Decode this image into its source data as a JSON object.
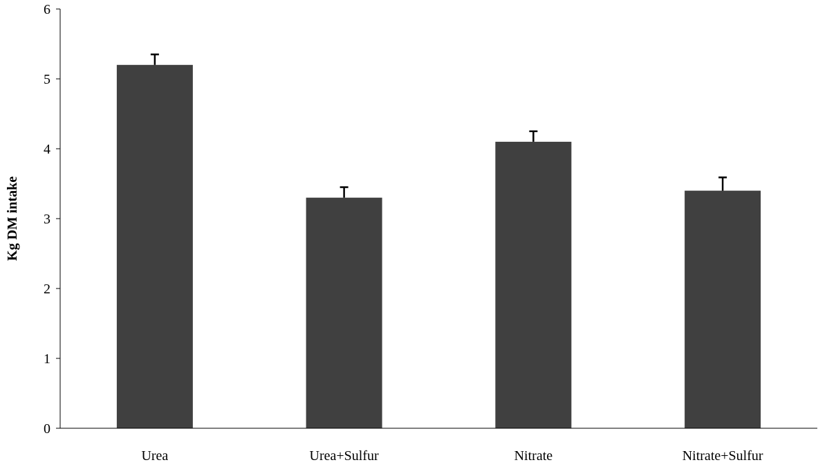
{
  "chart_data": {
    "type": "bar",
    "title": "",
    "xlabel": "",
    "ylabel": "Kg DM intake",
    "categories": [
      "Urea",
      "Urea+Sulfur",
      "Nitrate",
      "Nitrate+Sulfur"
    ],
    "values": [
      5.2,
      3.3,
      4.1,
      3.4
    ],
    "error_upper": [
      0.15,
      0.15,
      0.15,
      0.19
    ],
    "ylim": [
      0,
      6
    ],
    "yticks": [
      0,
      1,
      2,
      3,
      4,
      5,
      6
    ],
    "bar_color": "#404040",
    "grid": false,
    "legend": "none"
  }
}
